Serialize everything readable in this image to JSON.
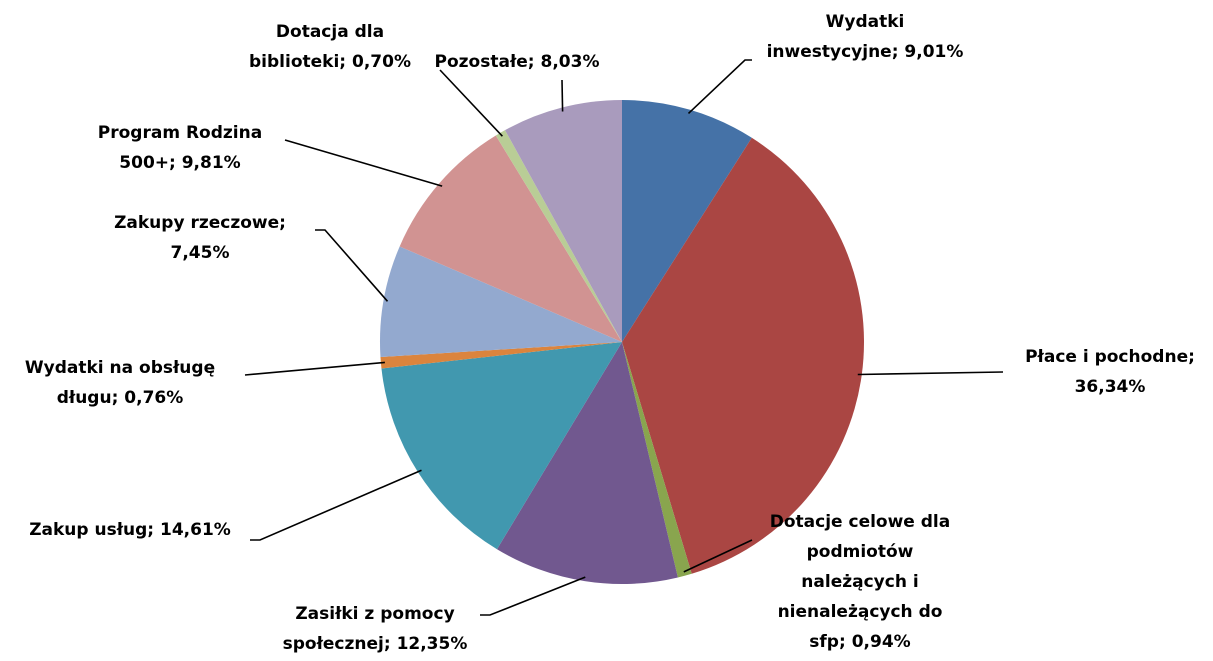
{
  "chart_data": {
    "type": "pie",
    "values": [
      9.01,
      36.34,
      0.94,
      12.35,
      14.61,
      0.76,
      7.45,
      9.81,
      0.7,
      8.03
    ],
    "value_labels": [
      "Wydatki inwestycyjne; 9,01%",
      "Płace i pochodne; 36,34%",
      "Dotacje celowe dla podmiotów należących i nienależących do sfp; 0,94%",
      "Zasiłki z pomocy społecznej; 12,35%",
      "Zakup usług; 14,61%",
      "Wydatki na obsługę długu; 0,76%",
      "Zakupy rzeczowe; 7,45%",
      "Program Rodzina 500+; 9,81%",
      "Dotacja dla biblioteki; 0,70%",
      "Pozostałe; 8,03%"
    ],
    "colors": [
      "#4572a7",
      "#aa4643",
      "#89a54e",
      "#71588f",
      "#4198af",
      "#db843d",
      "#93a9cf",
      "#d19392",
      "#b9cd96",
      "#a99bbd"
    ]
  }
}
